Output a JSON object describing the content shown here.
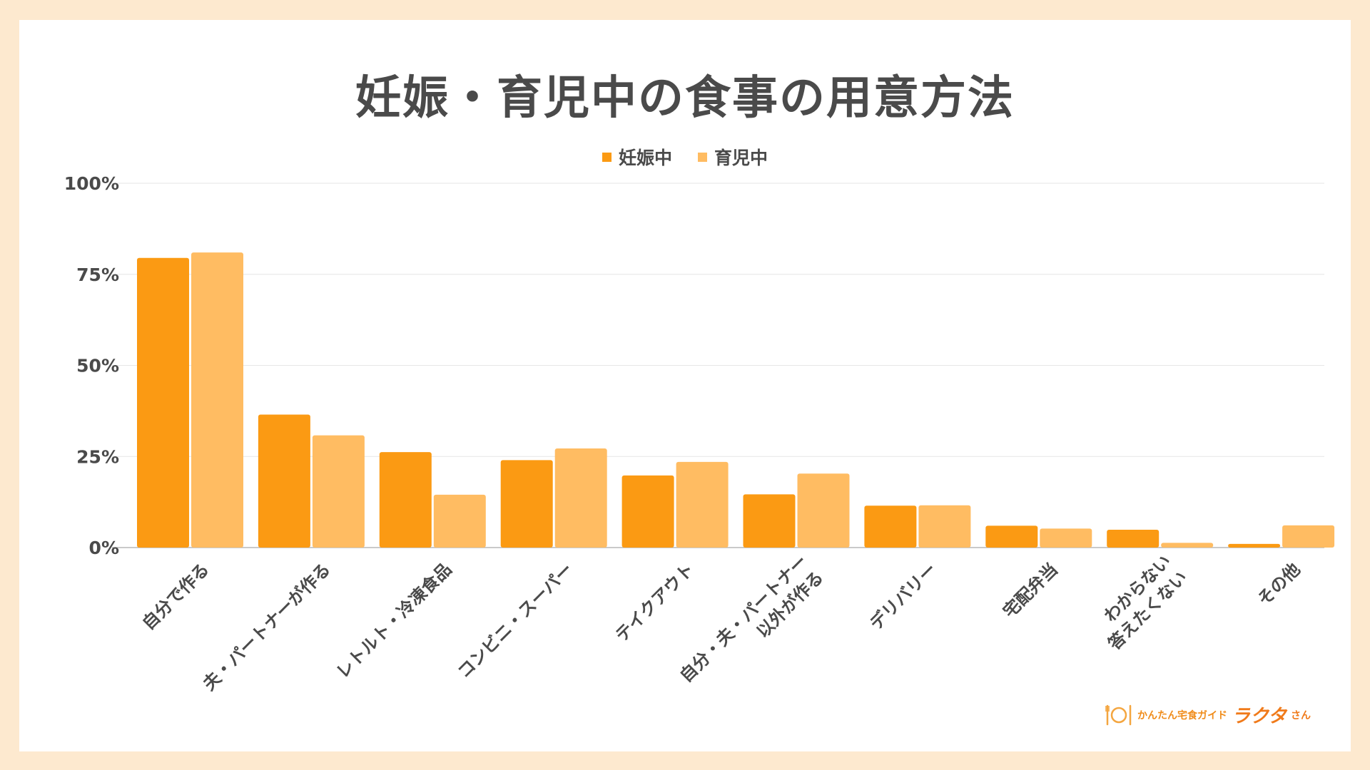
{
  "chart_data": {
    "type": "bar",
    "title": "妊娠・育児中の食事の用意方法",
    "categories": [
      [
        "自分で作る"
      ],
      [
        "夫・パートナーが作る"
      ],
      [
        "レトルト・冷凍食品"
      ],
      [
        "コンビニ・スーパー"
      ],
      [
        "テイクアウト"
      ],
      [
        "自分・夫・パートナー",
        "以外が作る"
      ],
      [
        "デリバリー"
      ],
      [
        "宅配弁当"
      ],
      [
        "わからない",
        "答えたくない"
      ],
      [
        "その他"
      ]
    ],
    "series": [
      {
        "name": "妊娠中",
        "color": "#fb9a13",
        "values": [
          79.5,
          36.5,
          26.2,
          24.0,
          19.8,
          14.6,
          11.5,
          6.0,
          4.9,
          1.0
        ]
      },
      {
        "name": "育児中",
        "color": "#ffbc62",
        "values": [
          81.0,
          30.8,
          14.5,
          27.2,
          23.5,
          20.3,
          11.6,
          5.2,
          1.3,
          6.1
        ]
      }
    ],
    "yticks": [
      "0%",
      "25%",
      "50%",
      "75%",
      "100%"
    ],
    "ylim": [
      0,
      100
    ],
    "legend_position": "top-center",
    "grid": true
  },
  "logo": {
    "tagline": "かんたん宅食ガイド",
    "name": "ラクタ",
    "suffix": "さん",
    "icon": "plate-fork-knife-icon"
  }
}
